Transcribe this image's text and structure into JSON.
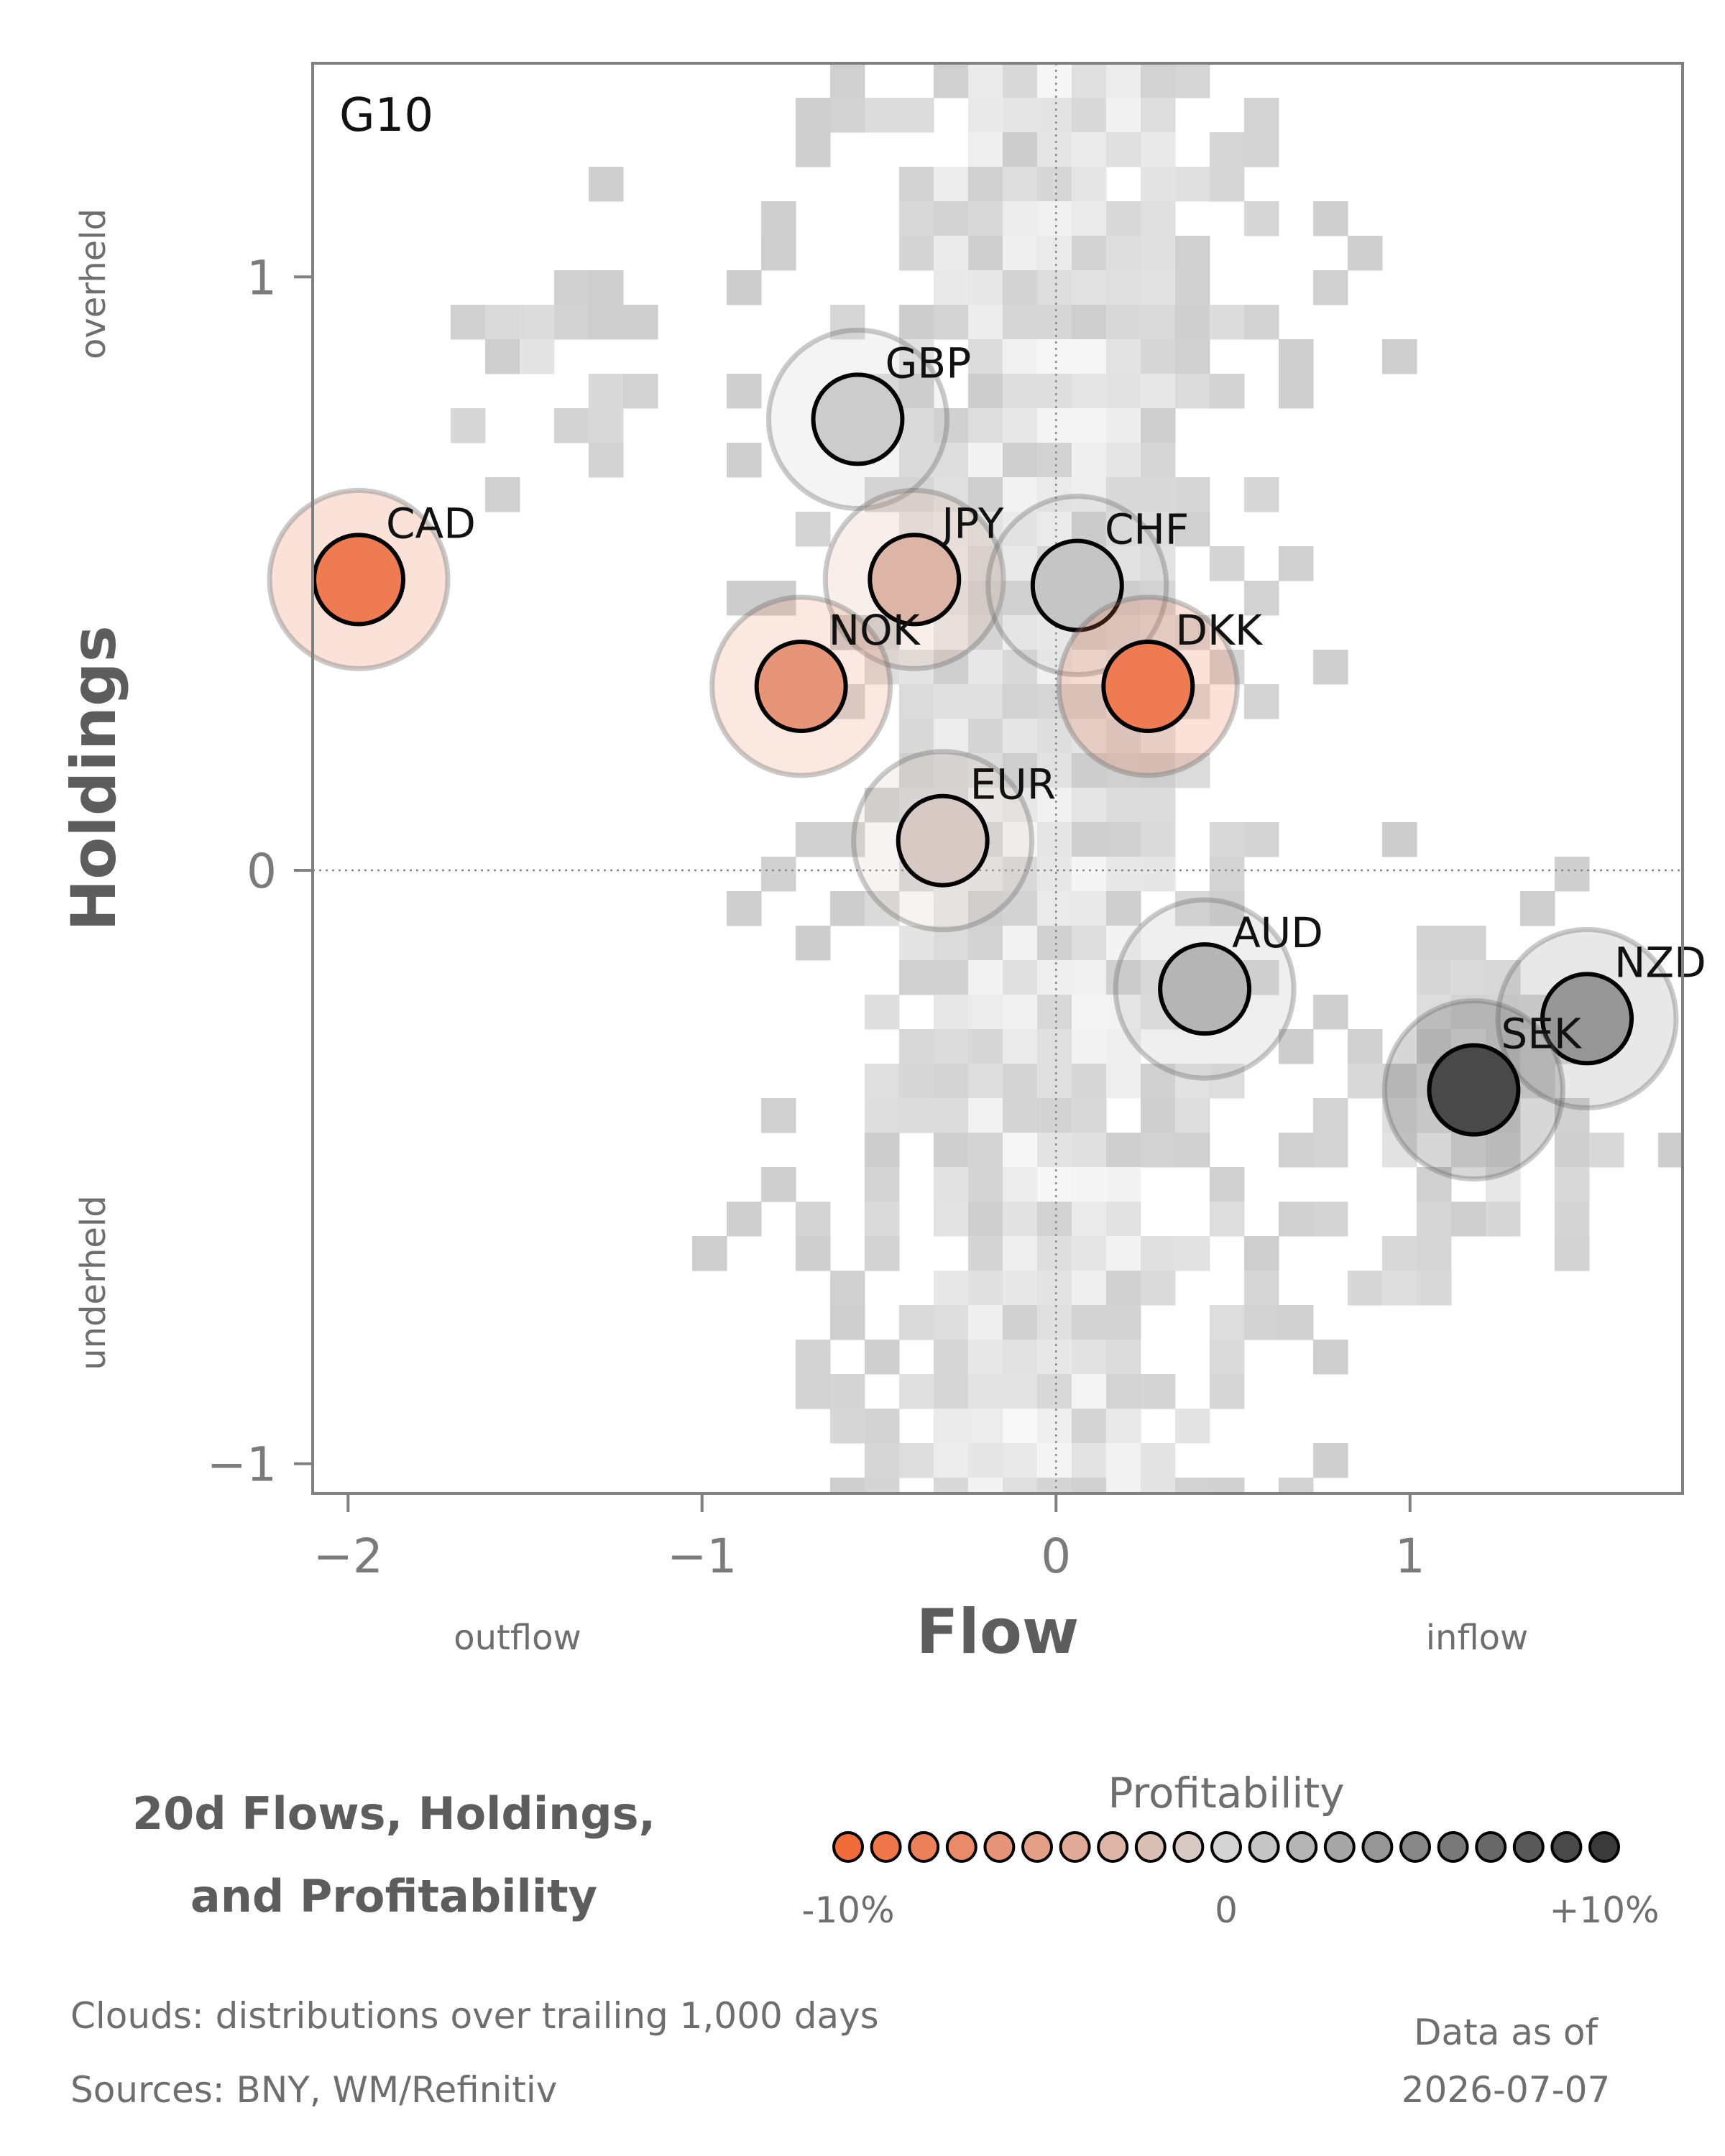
{
  "chart_data": {
    "type": "scatter",
    "panel_label": "G10",
    "title_lines": [
      "20d Flows, Holdings,",
      "and Profitability"
    ],
    "xlabel": "Flow",
    "ylabel": "Holdings",
    "x_direction_labels": {
      "low": "outflow",
      "high": "inflow"
    },
    "y_direction_labels": {
      "high": "overheld",
      "low": "underheld"
    },
    "xlim": [
      -2.1,
      1.77
    ],
    "ylim": [
      -1.05,
      1.36
    ],
    "x_ticks": [
      -2,
      -1,
      0,
      1
    ],
    "y_ticks": [
      -1,
      0,
      1
    ],
    "x_tick_labels": [
      "−2",
      "−1",
      "0",
      "1"
    ],
    "y_tick_labels": [
      "−1",
      "0",
      "1"
    ],
    "reference_lines": {
      "x": 0,
      "y": 0,
      "style": "dotted"
    },
    "colors": {
      "negative": "#f26b3a",
      "neutral": "#d4d4d4",
      "positive": "#3a3a3a"
    },
    "points": [
      {
        "label": "CAD",
        "flow": -1.97,
        "holdings": 0.49,
        "profitability": -0.085
      },
      {
        "label": "GBP",
        "flow": -0.56,
        "holdings": 0.76,
        "profitability": 0.005
      },
      {
        "label": "JPY",
        "flow": -0.4,
        "holdings": 0.49,
        "profitability": -0.03
      },
      {
        "label": "CHF",
        "flow": 0.06,
        "holdings": 0.48,
        "profitability": 0.01
      },
      {
        "label": "NOK",
        "flow": -0.72,
        "holdings": 0.31,
        "profitability": -0.06
      },
      {
        "label": "DKK",
        "flow": 0.26,
        "holdings": 0.31,
        "profitability": -0.085
      },
      {
        "label": "EUR",
        "flow": -0.32,
        "holdings": 0.05,
        "profitability": -0.01
      },
      {
        "label": "AUD",
        "flow": 0.42,
        "holdings": -0.2,
        "profitability": 0.02
      },
      {
        "label": "NZD",
        "flow": 1.5,
        "holdings": -0.25,
        "profitability": 0.04
      },
      {
        "label": "SEK",
        "flow": 1.18,
        "holdings": -0.37,
        "profitability": 0.09
      }
    ],
    "legend": {
      "title": "Profitability",
      "range": [
        -0.1,
        0.1
      ],
      "tick_labels": [
        "-10%",
        "0",
        "+10%"
      ]
    }
  },
  "footer": {
    "clouds_note": "Clouds:  distributions over trailing 1,000 days",
    "sources": "Sources:  BNY, WM/Refinitiv",
    "data_as_of_label": "Data as of",
    "data_as_of_date": "2026-07-07"
  }
}
